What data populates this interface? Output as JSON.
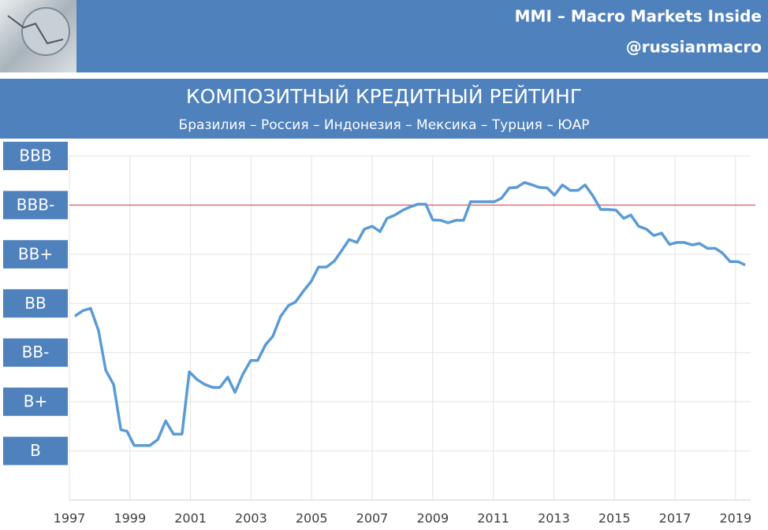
{
  "header": {
    "brand": "MMI – Macro Markets Inside",
    "handle": "@russianmacro"
  },
  "chart_data": {
    "type": "line",
    "title": "КОМПОЗИТНЫЙ КРЕДИТНЫЙ РЕЙТИНГ",
    "subtitle": "Бразилия – Россия – Индонезия – Мексика – Турция – ЮАР",
    "xlim": [
      1997,
      2019.5
    ],
    "xticks": [
      1997,
      1999,
      2001,
      2003,
      2005,
      2007,
      2009,
      2011,
      2013,
      2015,
      2017,
      2019
    ],
    "ylim": [
      -1,
      6
    ],
    "yticks": [
      {
        "value": 6,
        "label": "BBB"
      },
      {
        "value": 5,
        "label": "BBB-"
      },
      {
        "value": 4,
        "label": "BB+"
      },
      {
        "value": 3,
        "label": "BB"
      },
      {
        "value": 2,
        "label": "BB-"
      },
      {
        "value": 1,
        "label": "B+"
      },
      {
        "value": 0,
        "label": "B"
      }
    ],
    "grid": true,
    "color": "#5b9bd5",
    "reference_line": {
      "value": 5,
      "color": "#e06666"
    },
    "x": [
      1997.18,
      1997.44,
      1997.7,
      1997.96,
      1998.2,
      1998.46,
      1998.7,
      1998.9,
      1999.14,
      1999.4,
      1999.66,
      1999.92,
      2000.18,
      2000.44,
      2000.72,
      2000.96,
      2001.22,
      2001.48,
      2001.74,
      2001.97,
      2002.23,
      2002.47,
      2002.73,
      2002.99,
      2003.22,
      2003.48,
      2003.72,
      2003.98,
      2004.24,
      2004.47,
      2004.73,
      2004.99,
      2005.23,
      2005.49,
      2005.75,
      2006.01,
      2006.24,
      2006.5,
      2006.74,
      2007.0,
      2007.26,
      2007.49,
      2007.76,
      2008.02,
      2008.25,
      2008.51,
      2008.77,
      2009.0,
      2009.27,
      2009.5,
      2009.76,
      2010.02,
      2010.25,
      2010.52,
      2010.78,
      2011.04,
      2011.27,
      2011.53,
      2011.77,
      2012.03,
      2012.29,
      2012.52,
      2012.78,
      2013.02,
      2013.28,
      2013.54,
      2013.8,
      2014.03,
      2014.29,
      2014.55,
      2014.79,
      2015.05,
      2015.31,
      2015.54,
      2015.8,
      2016.06,
      2016.3,
      2016.56,
      2016.82,
      2017.05,
      2017.31,
      2017.57,
      2017.81,
      2018.07,
      2018.33,
      2018.56,
      2018.82,
      2019.08,
      2019.32
    ],
    "values": [
      2.74,
      2.85,
      2.9,
      2.45,
      1.64,
      1.35,
      0.43,
      0.4,
      0.11,
      0.11,
      0.11,
      0.23,
      0.61,
      0.34,
      0.34,
      1.61,
      1.45,
      1.35,
      1.29,
      1.29,
      1.5,
      1.19,
      1.56,
      1.84,
      1.84,
      2.16,
      2.33,
      2.74,
      2.96,
      3.03,
      3.25,
      3.45,
      3.74,
      3.74,
      3.86,
      4.09,
      4.3,
      4.24,
      4.51,
      4.57,
      4.46,
      4.73,
      4.8,
      4.9,
      4.96,
      5.02,
      5.02,
      4.7,
      4.69,
      4.64,
      4.69,
      4.69,
      5.07,
      5.07,
      5.07,
      5.07,
      5.14,
      5.35,
      5.36,
      5.46,
      5.41,
      5.36,
      5.35,
      5.2,
      5.41,
      5.3,
      5.3,
      5.41,
      5.19,
      4.91,
      4.91,
      4.9,
      4.73,
      4.8,
      4.57,
      4.51,
      4.38,
      4.43,
      4.2,
      4.24,
      4.24,
      4.19,
      4.22,
      4.12,
      4.12,
      4.03,
      3.85,
      3.85,
      3.78
    ]
  }
}
